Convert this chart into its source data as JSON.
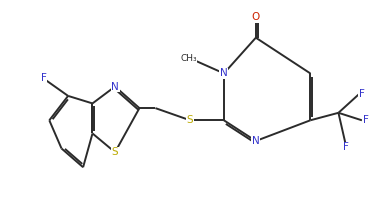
{
  "bg_color": "#ffffff",
  "bond_color": "#2b2b2b",
  "atom_colors": {
    "N": "#3333cc",
    "S": "#bbaa00",
    "F": "#3333cc",
    "O": "#cc2200",
    "C": "#2b2b2b"
  },
  "bond_width": 1.4,
  "dbl_sep": 0.055,
  "font_size": 7.5,
  "figsize": [
    3.8,
    2.14
  ],
  "dpi": 100
}
